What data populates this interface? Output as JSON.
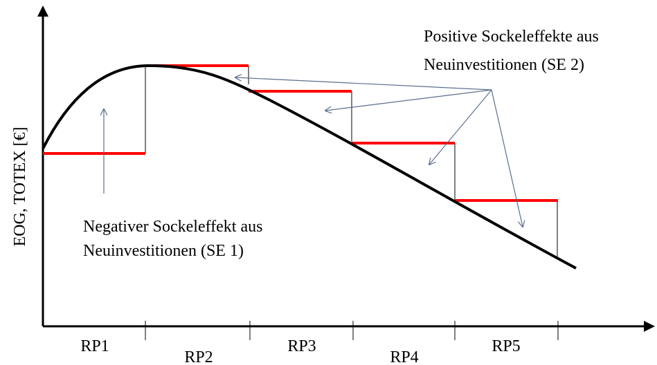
{
  "y_axis_label": "EOG, TOTEX [€]",
  "annotations": {
    "positive": [
      "Positive Sockeleffekte aus",
      "Neuinvestitionen (SE 2)"
    ],
    "negative": [
      "Negativer Sockeleffekt aus",
      "Neuinvestitionen (SE 1)"
    ]
  },
  "periods": [
    "RP1",
    "RP2",
    "RP3",
    "RP4",
    "RP5"
  ]
}
